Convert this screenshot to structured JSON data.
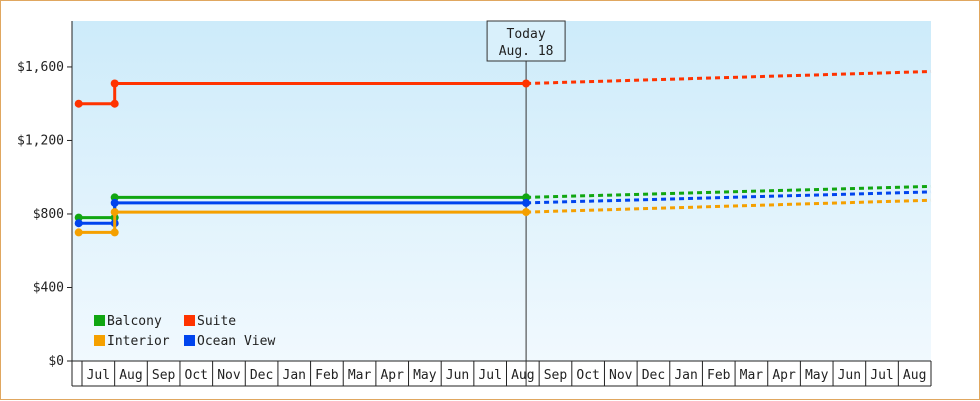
{
  "chart_data": {
    "type": "line",
    "style": "step",
    "y_axis": {
      "min": 0,
      "max": 1850,
      "ticks": [
        0,
        400,
        800,
        1200,
        1600
      ],
      "tick_labels": [
        "$0",
        "$400",
        "$800",
        "$1,200",
        "$1,600"
      ]
    },
    "x_axis": {
      "labels": [
        "Jul",
        "Aug",
        "Sep",
        "Oct",
        "Nov",
        "Dec",
        "Jan",
        "Feb",
        "Mar",
        "Apr",
        "May",
        "Jun",
        "Jul",
        "Aug",
        "Sep",
        "Oct",
        "Nov",
        "Dec",
        "Jan",
        "Feb",
        "Mar",
        "Apr",
        "May",
        "Jun",
        "Jul",
        "Aug"
      ]
    },
    "today": {
      "label_line1": "Today",
      "label_line2": "Aug. 18",
      "x": 13.6
    },
    "series": [
      {
        "name": "Suite",
        "color": "#ff3300",
        "history": [
          [
            -0.1,
            1400
          ],
          [
            1.0,
            1400
          ],
          [
            1.0,
            1510
          ],
          [
            13.6,
            1510
          ]
        ],
        "points": [
          [
            -0.1,
            1400
          ],
          [
            1.0,
            1400
          ],
          [
            1.0,
            1510
          ],
          [
            13.6,
            1510
          ]
        ],
        "forecast": [
          [
            13.6,
            1510
          ],
          [
            26.0,
            1575
          ]
        ]
      },
      {
        "name": "Balcony",
        "color": "#11a611",
        "history": [
          [
            -0.1,
            780
          ],
          [
            1.0,
            780
          ],
          [
            1.0,
            890
          ],
          [
            13.6,
            890
          ]
        ],
        "points": [
          [
            -0.1,
            780
          ],
          [
            1.0,
            780
          ],
          [
            1.0,
            890
          ],
          [
            13.6,
            890
          ]
        ],
        "forecast": [
          [
            13.6,
            890
          ],
          [
            26.0,
            950
          ]
        ]
      },
      {
        "name": "Ocean View",
        "color": "#0044ee",
        "history": [
          [
            -0.1,
            750
          ],
          [
            1.0,
            750
          ],
          [
            1.0,
            860
          ],
          [
            13.6,
            860
          ]
        ],
        "points": [
          [
            -0.1,
            750
          ],
          [
            1.0,
            750
          ],
          [
            1.0,
            860
          ],
          [
            13.6,
            860
          ]
        ],
        "forecast": [
          [
            13.6,
            860
          ],
          [
            26.0,
            920
          ]
        ]
      },
      {
        "name": "Interior",
        "color": "#f5a000",
        "history": [
          [
            -0.1,
            700
          ],
          [
            1.0,
            700
          ],
          [
            1.0,
            810
          ],
          [
            13.6,
            810
          ]
        ],
        "points": [
          [
            -0.1,
            700
          ],
          [
            1.0,
            700
          ],
          [
            1.0,
            810
          ],
          [
            13.6,
            810
          ]
        ],
        "forecast": [
          [
            13.6,
            810
          ],
          [
            26.0,
            875
          ]
        ]
      }
    ],
    "legend": [
      {
        "name": "Balcony",
        "color": "#11a611"
      },
      {
        "name": "Suite",
        "color": "#ff3300"
      },
      {
        "name": "Interior",
        "color": "#f5a000"
      },
      {
        "name": "Ocean View",
        "color": "#0044ee"
      }
    ],
    "legend_position": "bottom-left"
  }
}
